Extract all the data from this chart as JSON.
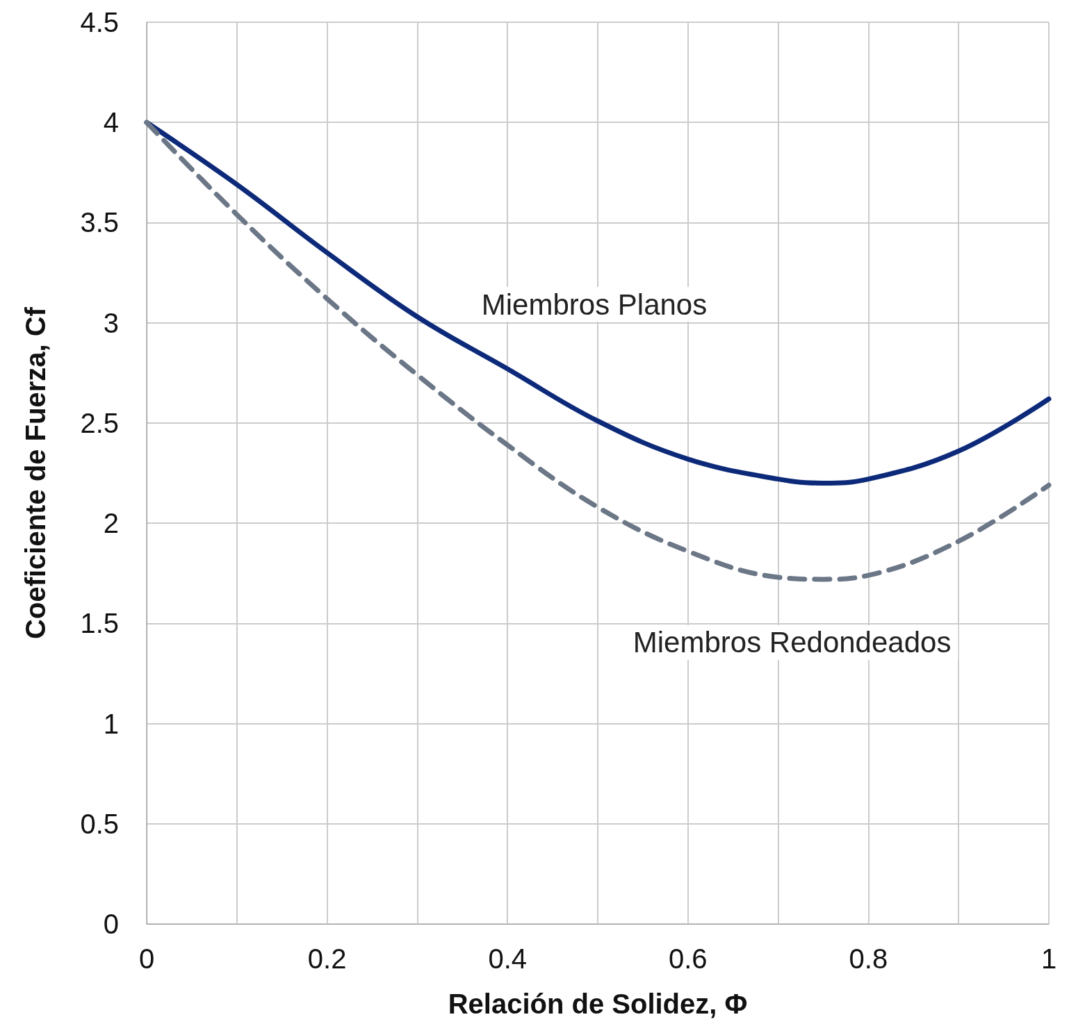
{
  "chart_data": {
    "type": "line",
    "xlabel": "Relación de Solidez, Φ",
    "ylabel": "Coeficiente de Fuerza, Cf",
    "x": [
      0,
      0.1,
      0.2,
      0.3,
      0.4,
      0.5,
      0.6,
      0.7,
      0.75,
      0.8,
      0.9,
      1.0
    ],
    "series": [
      {
        "name": "Miembros Planos",
        "color": "#0d2a7a",
        "line_style": "solid",
        "values": [
          4.0,
          3.69,
          3.35,
          3.03,
          2.77,
          2.51,
          2.32,
          2.22,
          2.2,
          2.22,
          2.36,
          2.62
        ]
      },
      {
        "name": "Miembros Redondeados",
        "color": "#6b7686",
        "line_style": "dashed",
        "values": [
          4.0,
          3.54,
          3.12,
          2.74,
          2.39,
          2.08,
          1.86,
          1.73,
          1.72,
          1.74,
          1.91,
          2.19
        ]
      }
    ],
    "xlim": [
      0,
      1
    ],
    "xticks": [
      0,
      0.2,
      0.4,
      0.6,
      0.8,
      1
    ],
    "ylim": [
      0,
      4.5
    ],
    "yticks": [
      0,
      0.5,
      1,
      1.5,
      2,
      2.5,
      3,
      3.5,
      4,
      4.5
    ],
    "grid": true,
    "legend": false
  }
}
